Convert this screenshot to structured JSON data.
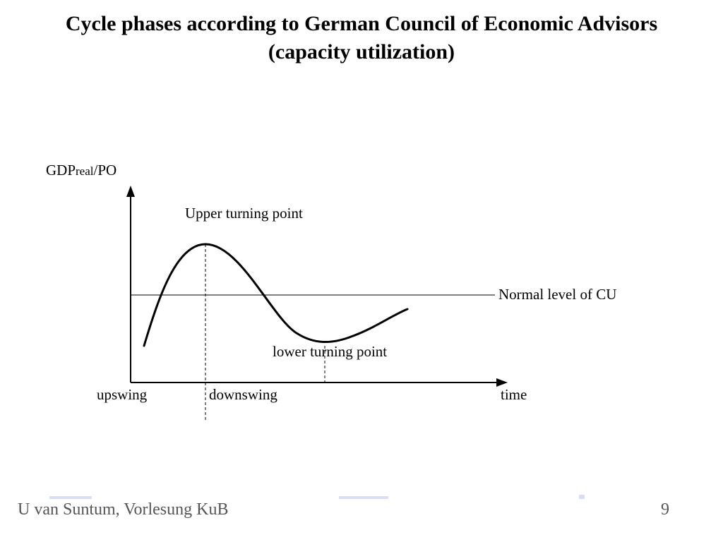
{
  "title": {
    "line1": "Cycle phases according to German Council of Economic Advisors",
    "line2": "(capacity utilization)"
  },
  "diagram": {
    "y_axis_label_main": "GDP",
    "y_axis_label_sub": "real",
    "y_axis_label_tail": "/PO",
    "x_axis_label": "time",
    "upper_turning_point_label": "Upper turning point",
    "lower_turning_point_label": "lower turning point",
    "normal_level_label": "Normal level of CU",
    "upswing_label": "upswing",
    "downswing_label": "downswing"
  },
  "footer": {
    "author": "U van Suntum, Vorlesung KuB",
    "page_number": "9"
  },
  "colors": {
    "text": "#000000",
    "footer_text": "#555555",
    "ghost_blue": "#6a7fd8"
  }
}
